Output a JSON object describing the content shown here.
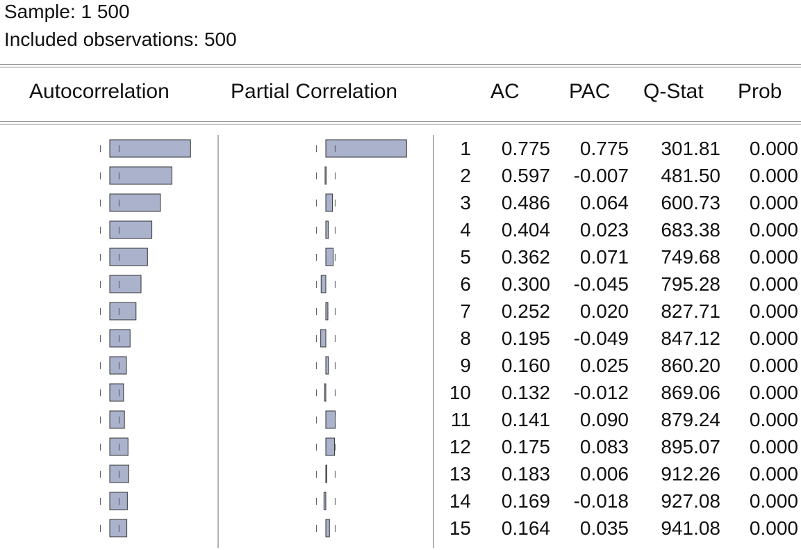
{
  "header": {
    "sample": "Sample: 1 500",
    "included": "Included observations: 500"
  },
  "columns": {
    "autocorrelation": "Autocorrelation",
    "partial_correlation": "Partial Correlation",
    "ac": "AC",
    "pac": "PAC",
    "qstat": "Q-Stat",
    "prob": "Prob"
  },
  "colors": {
    "bar_fill": "#aab2cc",
    "bar_stroke": "#333333",
    "bound": "#555555"
  },
  "chart_data": {
    "type": "table",
    "confidence_bound": 0.0894,
    "rows": [
      {
        "lag": "1",
        "ac": "0.775",
        "pac": "0.775",
        "qstat": "301.81",
        "prob": "0.000"
      },
      {
        "lag": "2",
        "ac": "0.597",
        "pac": "-0.007",
        "qstat": "481.50",
        "prob": "0.000"
      },
      {
        "lag": "3",
        "ac": "0.486",
        "pac": "0.064",
        "qstat": "600.73",
        "prob": "0.000"
      },
      {
        "lag": "4",
        "ac": "0.404",
        "pac": "0.023",
        "qstat": "683.38",
        "prob": "0.000"
      },
      {
        "lag": "5",
        "ac": "0.362",
        "pac": "0.071",
        "qstat": "749.68",
        "prob": "0.000"
      },
      {
        "lag": "6",
        "ac": "0.300",
        "pac": "-0.045",
        "qstat": "795.28",
        "prob": "0.000"
      },
      {
        "lag": "7",
        "ac": "0.252",
        "pac": "0.020",
        "qstat": "827.71",
        "prob": "0.000"
      },
      {
        "lag": "8",
        "ac": "0.195",
        "pac": "-0.049",
        "qstat": "847.12",
        "prob": "0.000"
      },
      {
        "lag": "9",
        "ac": "0.160",
        "pac": "0.025",
        "qstat": "860.20",
        "prob": "0.000"
      },
      {
        "lag": "10",
        "ac": "0.132",
        "pac": "-0.012",
        "qstat": "869.06",
        "prob": "0.000"
      },
      {
        "lag": "11",
        "ac": "0.141",
        "pac": "0.090",
        "qstat": "879.24",
        "prob": "0.000"
      },
      {
        "lag": "12",
        "ac": "0.175",
        "pac": "0.083",
        "qstat": "895.07",
        "prob": "0.000"
      },
      {
        "lag": "13",
        "ac": "0.183",
        "pac": "0.006",
        "qstat": "912.26",
        "prob": "0.000"
      },
      {
        "lag": "14",
        "ac": "0.169",
        "pac": "-0.018",
        "qstat": "927.08",
        "prob": "0.000"
      },
      {
        "lag": "15",
        "ac": "0.164",
        "pac": "0.035",
        "qstat": "941.08",
        "prob": "0.000"
      }
    ]
  }
}
